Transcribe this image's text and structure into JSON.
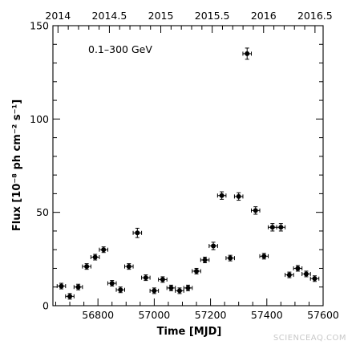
{
  "chart_data": {
    "type": "scatter",
    "annotation": "0.1–300 GeV",
    "xlabel": "Time [MJD]",
    "ylabel": "Flux [10⁻⁸ ph cm⁻² s⁻¹]",
    "xlim": [
      56640,
      57600
    ],
    "ylim": [
      0,
      150
    ],
    "x_ticks": [
      "56800",
      "57000",
      "57200",
      "57400",
      "57600"
    ],
    "x_tick_values": [
      56800,
      57000,
      57200,
      57400,
      57600
    ],
    "y_ticks": [
      "0",
      "50",
      "100",
      "150"
    ],
    "y_tick_values": [
      0,
      50,
      100,
      150
    ],
    "top_axis_label_values": [
      2014,
      2014.5,
      2015,
      2015.5,
      2016,
      2016.5
    ],
    "top_axis_labels": [
      "2014",
      "2014.5",
      "2015",
      "2015.5",
      "2016",
      "2016.5"
    ],
    "grid": false,
    "x_bin_half_width": 15,
    "points": [
      {
        "x": 56670,
        "y": 10.5,
        "yerr": 1.5
      },
      {
        "x": 56700,
        "y": 5.0,
        "yerr": 1.5
      },
      {
        "x": 56730,
        "y": 10.0,
        "yerr": 1.5
      },
      {
        "x": 56760,
        "y": 21.0,
        "yerr": 1.5
      },
      {
        "x": 56790,
        "y": 26.0,
        "yerr": 1.5
      },
      {
        "x": 56820,
        "y": 30.0,
        "yerr": 1.5
      },
      {
        "x": 56850,
        "y": 12.0,
        "yerr": 1.5
      },
      {
        "x": 56880,
        "y": 8.5,
        "yerr": 1.5
      },
      {
        "x": 56910,
        "y": 21.0,
        "yerr": 1.5
      },
      {
        "x": 56940,
        "y": 39.0,
        "yerr": 2.5
      },
      {
        "x": 56970,
        "y": 15.0,
        "yerr": 1.5
      },
      {
        "x": 57000,
        "y": 8.0,
        "yerr": 1.5
      },
      {
        "x": 57030,
        "y": 14.0,
        "yerr": 1.5
      },
      {
        "x": 57060,
        "y": 9.5,
        "yerr": 1.5
      },
      {
        "x": 57090,
        "y": 8.0,
        "yerr": 1.5
      },
      {
        "x": 57120,
        "y": 9.5,
        "yerr": 1.5
      },
      {
        "x": 57150,
        "y": 18.5,
        "yerr": 1.5
      },
      {
        "x": 57180,
        "y": 24.5,
        "yerr": 1.5
      },
      {
        "x": 57210,
        "y": 32.0,
        "yerr": 2.0
      },
      {
        "x": 57240,
        "y": 59.0,
        "yerr": 2.0
      },
      {
        "x": 57270,
        "y": 25.5,
        "yerr": 1.5
      },
      {
        "x": 57300,
        "y": 58.5,
        "yerr": 2.0
      },
      {
        "x": 57330,
        "y": 135.0,
        "yerr": 3.0
      },
      {
        "x": 57360,
        "y": 51.0,
        "yerr": 2.0
      },
      {
        "x": 57390,
        "y": 26.5,
        "yerr": 1.5
      },
      {
        "x": 57420,
        "y": 42.0,
        "yerr": 2.0
      },
      {
        "x": 57450,
        "y": 42.0,
        "yerr": 2.0
      },
      {
        "x": 57480,
        "y": 16.5,
        "yerr": 1.5
      },
      {
        "x": 57510,
        "y": 20.0,
        "yerr": 1.5
      },
      {
        "x": 57540,
        "y": 17.0,
        "yerr": 1.5
      },
      {
        "x": 57570,
        "y": 14.5,
        "yerr": 1.5
      }
    ]
  },
  "watermark": "SCIENCEAQ.COM",
  "colors": {
    "marker": "#000000",
    "axis": "#000000",
    "watermark": "#c8c8c8"
  }
}
